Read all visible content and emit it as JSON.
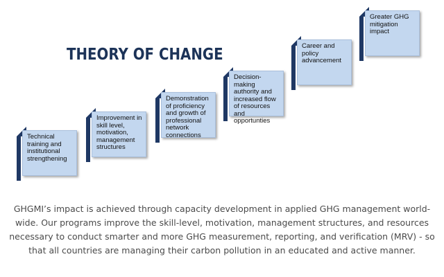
{
  "title": "THEORY OF CHANGE",
  "steps": [
    {
      "label": "Technical\ntraining and\ninstitutional\nstrengthening"
    },
    {
      "label": "Improvement in\nskill level,\nmotivation,\nmanagement\nstructures"
    },
    {
      "label": "Demonstration\nof proficiency\nand growth of\nprofessional\nnetwork\nconnections"
    },
    {
      "label": "Decision-\nmaking\nauthority and\nincreased flow\nof resources\nand\nopportunties"
    },
    {
      "label": "Career and\npolicy\nadvancement"
    },
    {
      "label": "Greater GHG\nmitigation\nimpact"
    }
  ],
  "description": "GHGMI’s impact is achieved through capacity development in applied GHG management world-wide.  Our programs improve the skill-level, motivation, management structures, and resources necessary to conduct smarter and more GHG measurement, reporting, and verification (MRV) - so that all countries are managing their carbon pollution in an educated and active manner.",
  "colors": {
    "title": "#1c3358",
    "step_fill": "#c3d7ef",
    "step_accent": "#1f3864",
    "description": "#4a4a4a"
  }
}
